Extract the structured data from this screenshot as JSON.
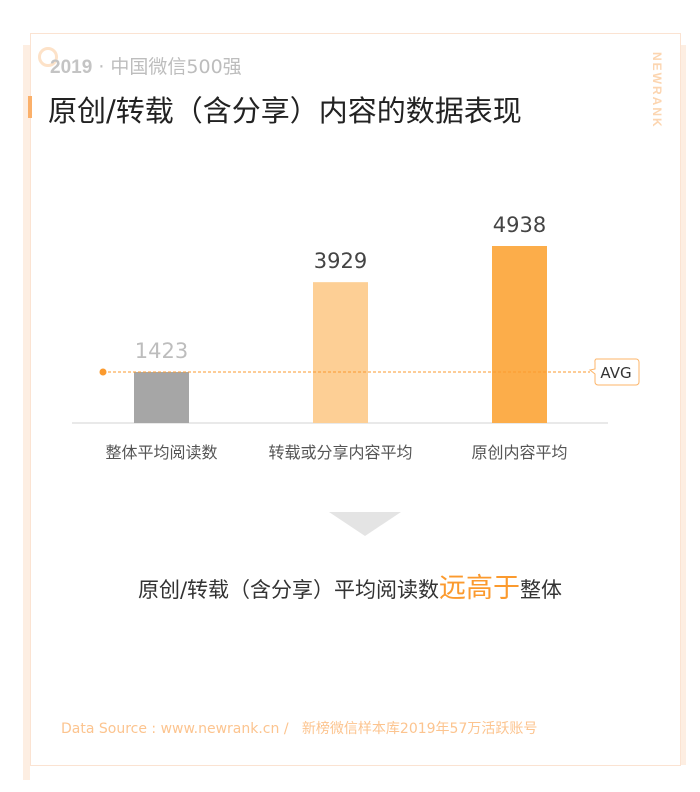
{
  "header": {
    "year": "2019",
    "subtitle": "· 中国微信500强",
    "title": "原创/转载（含分享）内容的数据表现",
    "brand": "NEWRANK"
  },
  "chart_data": {
    "type": "bar",
    "categories": [
      "整体平均阅读数",
      "转载或分享内容平均",
      "原创内容平均"
    ],
    "values": [
      1423,
      3929,
      4938
    ],
    "data_labels": [
      "1423",
      "3929",
      "4938"
    ],
    "colors": [
      "#a6a6a6",
      "#fdcf95",
      "#fcad4a"
    ],
    "reference_line": {
      "label": "AVG",
      "value": 1423,
      "color": "#fb9a2e"
    },
    "ylim": [
      0,
      5000
    ]
  },
  "conclusion": {
    "before": "原创/转载（含分享）平均阅读数",
    "highlight": "远高于",
    "after": "整体"
  },
  "footer": {
    "source": "Data Source : www.newrank.cn /",
    "note": "新榜微信样本库2019年57万活跃账号"
  }
}
